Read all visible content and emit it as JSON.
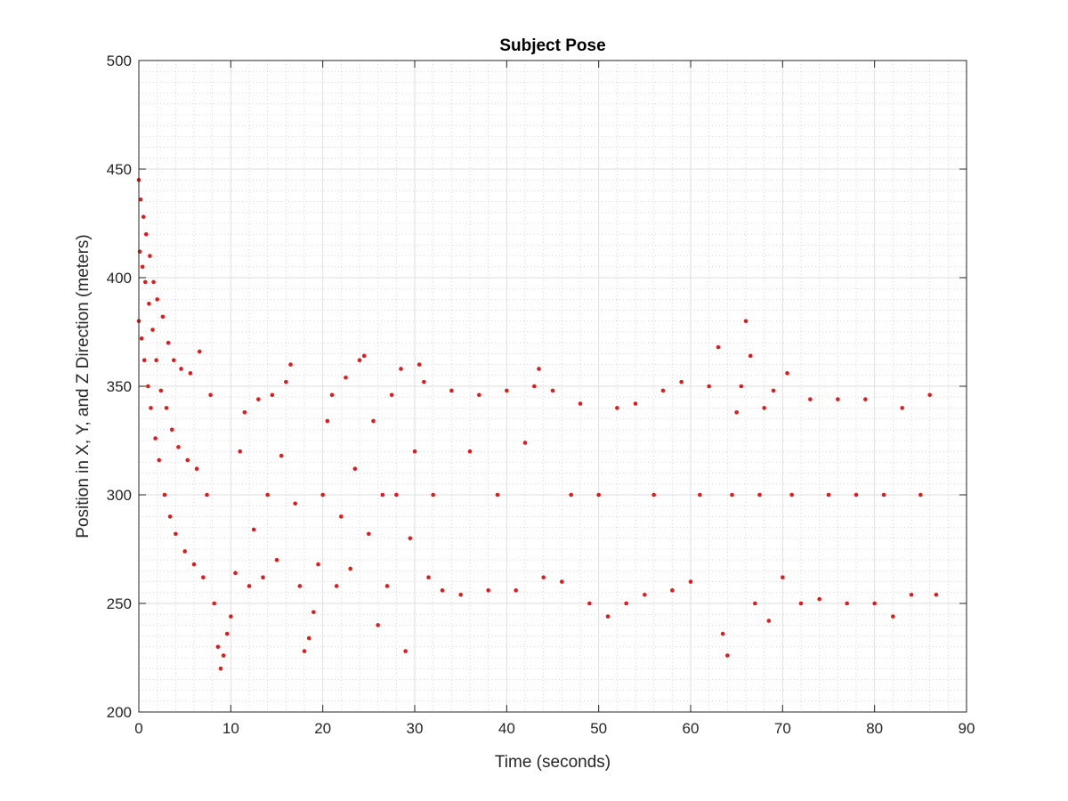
{
  "chart_data": {
    "type": "scatter",
    "title": "Subject Pose",
    "xlabel": "Time (seconds)",
    "ylabel": "Position in X, Y, and Z Direction (meters)",
    "xlim": [
      0,
      90
    ],
    "ylim": [
      200,
      500
    ],
    "xticks": [
      "0",
      "10",
      "20",
      "30",
      "40",
      "50",
      "60",
      "70",
      "80",
      "90"
    ],
    "yticks": [
      "200",
      "250",
      "300",
      "350",
      "400",
      "450",
      "500"
    ],
    "grid": true,
    "minor_grid": true,
    "legend": "none",
    "marker_color": "#e31a1c",
    "series": [
      {
        "duration_s": 86.7,
        "points": [
          [
            0.0,
            445
          ],
          [
            0.0,
            380
          ],
          [
            0.1,
            412
          ],
          [
            0.2,
            436
          ],
          [
            0.3,
            372
          ],
          [
            0.4,
            405
          ],
          [
            0.5,
            428
          ],
          [
            0.6,
            362
          ],
          [
            0.7,
            398
          ],
          [
            0.8,
            420
          ],
          [
            1.0,
            350
          ],
          [
            1.1,
            388
          ],
          [
            1.2,
            410
          ],
          [
            1.3,
            340
          ],
          [
            1.5,
            376
          ],
          [
            1.6,
            398
          ],
          [
            1.8,
            326
          ],
          [
            1.9,
            362
          ],
          [
            2.0,
            390
          ],
          [
            2.2,
            316
          ],
          [
            2.4,
            348
          ],
          [
            2.6,
            382
          ],
          [
            2.8,
            300
          ],
          [
            3.0,
            340
          ],
          [
            3.2,
            370
          ],
          [
            3.4,
            290
          ],
          [
            3.6,
            330
          ],
          [
            3.8,
            362
          ],
          [
            4.0,
            282
          ],
          [
            4.3,
            322
          ],
          [
            4.6,
            358
          ],
          [
            5.0,
            274
          ],
          [
            5.3,
            316
          ],
          [
            5.6,
            356
          ],
          [
            6.0,
            268
          ],
          [
            6.3,
            312
          ],
          [
            6.6,
            366
          ],
          [
            7.0,
            262
          ],
          [
            7.4,
            300
          ],
          [
            7.8,
            346
          ],
          [
            8.2,
            250
          ],
          [
            8.6,
            230
          ],
          [
            8.9,
            220
          ],
          [
            9.2,
            226
          ],
          [
            9.6,
            236
          ],
          [
            10.0,
            244
          ],
          [
            10.5,
            264
          ],
          [
            11.0,
            320
          ],
          [
            11.5,
            338
          ],
          [
            12.0,
            258
          ],
          [
            12.5,
            284
          ],
          [
            13.0,
            344
          ],
          [
            13.5,
            262
          ],
          [
            14.0,
            300
          ],
          [
            14.5,
            346
          ],
          [
            15.0,
            270
          ],
          [
            15.5,
            318
          ],
          [
            16.0,
            352
          ],
          [
            16.5,
            360
          ],
          [
            17.0,
            296
          ],
          [
            17.5,
            258
          ],
          [
            18.0,
            228
          ],
          [
            18.5,
            234
          ],
          [
            19.0,
            246
          ],
          [
            19.5,
            268
          ],
          [
            20.0,
            300
          ],
          [
            20.5,
            334
          ],
          [
            21.0,
            346
          ],
          [
            21.5,
            258
          ],
          [
            22.0,
            290
          ],
          [
            22.5,
            354
          ],
          [
            23.0,
            266
          ],
          [
            23.5,
            312
          ],
          [
            24.0,
            362
          ],
          [
            24.5,
            364
          ],
          [
            25.0,
            282
          ],
          [
            25.5,
            334
          ],
          [
            26.0,
            240
          ],
          [
            26.5,
            300
          ],
          [
            27.0,
            258
          ],
          [
            27.5,
            346
          ],
          [
            28.0,
            300
          ],
          [
            28.5,
            358
          ],
          [
            29.0,
            228
          ],
          [
            29.5,
            280
          ],
          [
            30.0,
            320
          ],
          [
            30.5,
            360
          ],
          [
            31.0,
            352
          ],
          [
            31.5,
            262
          ],
          [
            32.0,
            300
          ],
          [
            33.0,
            256
          ],
          [
            34.0,
            348
          ],
          [
            35.0,
            254
          ],
          [
            36.0,
            320
          ],
          [
            37.0,
            346
          ],
          [
            38.0,
            256
          ],
          [
            39.0,
            300
          ],
          [
            40.0,
            348
          ],
          [
            41.0,
            256
          ],
          [
            42.0,
            324
          ],
          [
            43.0,
            350
          ],
          [
            43.5,
            358
          ],
          [
            44.0,
            262
          ],
          [
            45.0,
            348
          ],
          [
            46.0,
            260
          ],
          [
            47.0,
            300
          ],
          [
            48.0,
            342
          ],
          [
            49.0,
            250
          ],
          [
            50.0,
            300
          ],
          [
            51.0,
            244
          ],
          [
            52.0,
            340
          ],
          [
            53.0,
            250
          ],
          [
            54.0,
            342
          ],
          [
            55.0,
            254
          ],
          [
            56.0,
            300
          ],
          [
            57.0,
            348
          ],
          [
            58.0,
            256
          ],
          [
            59.0,
            352
          ],
          [
            60.0,
            260
          ],
          [
            61.0,
            300
          ],
          [
            62.0,
            350
          ],
          [
            63.0,
            368
          ],
          [
            63.5,
            236
          ],
          [
            64.0,
            226
          ],
          [
            64.5,
            300
          ],
          [
            65.0,
            338
          ],
          [
            65.5,
            350
          ],
          [
            66.0,
            380
          ],
          [
            66.5,
            364
          ],
          [
            67.0,
            250
          ],
          [
            67.5,
            300
          ],
          [
            68.0,
            340
          ],
          [
            68.5,
            242
          ],
          [
            69.0,
            348
          ],
          [
            70.0,
            262
          ],
          [
            70.5,
            356
          ],
          [
            71.0,
            300
          ],
          [
            72.0,
            250
          ],
          [
            73.0,
            344
          ],
          [
            74.0,
            252
          ],
          [
            75.0,
            300
          ],
          [
            76.0,
            344
          ],
          [
            77.0,
            250
          ],
          [
            78.0,
            300
          ],
          [
            79.0,
            344
          ],
          [
            80.0,
            250
          ],
          [
            81.0,
            300
          ],
          [
            82.0,
            244
          ],
          [
            83.0,
            340
          ],
          [
            84.0,
            254
          ],
          [
            85.0,
            300
          ],
          [
            86.0,
            346
          ],
          [
            86.7,
            254
          ]
        ]
      }
    ]
  }
}
